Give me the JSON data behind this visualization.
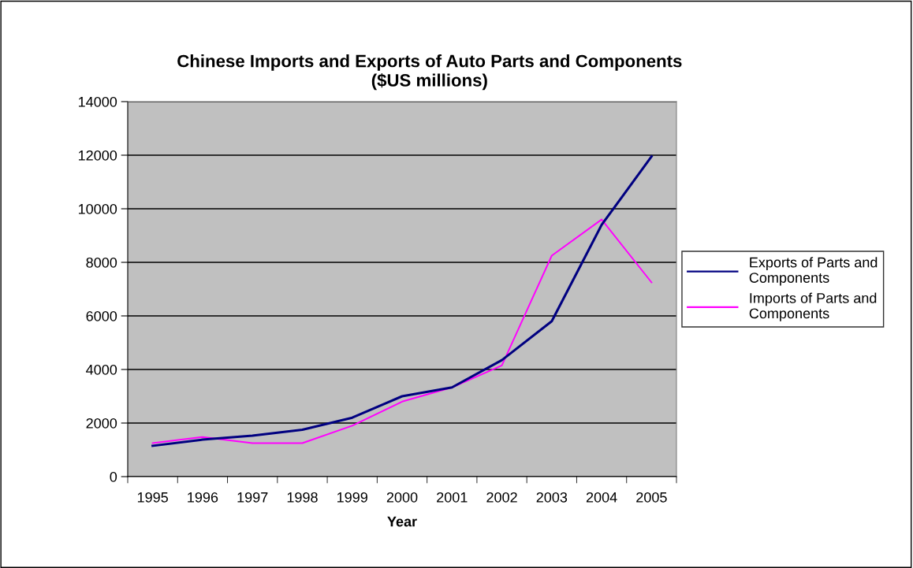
{
  "chart_data": {
    "type": "line",
    "title": "Chinese Imports and Exports of Auto Parts and Components\n($US millions)",
    "xlabel": "Year",
    "categories": [
      "1995",
      "1996",
      "1997",
      "1998",
      "1999",
      "2000",
      "2001",
      "2002",
      "2003",
      "2004",
      "2005"
    ],
    "series": [
      {
        "name": "Exports of Parts and\nComponents",
        "color": "#000080",
        "values": [
          1150,
          1380,
          1530,
          1750,
          2200,
          3000,
          3330,
          4350,
          5800,
          9400,
          11950
        ]
      },
      {
        "name": "Imports of Parts and\nComponents",
        "color": "#ff00ff",
        "values": [
          1250,
          1480,
          1250,
          1250,
          1900,
          2800,
          3330,
          4150,
          8250,
          9600,
          7250
        ]
      }
    ],
    "ylim": [
      0,
      14000
    ],
    "yticks": [
      0,
      2000,
      4000,
      6000,
      8000,
      10000,
      12000,
      14000
    ],
    "grid": "y",
    "legend": "right",
    "marker": "none",
    "line_style": "solid"
  }
}
